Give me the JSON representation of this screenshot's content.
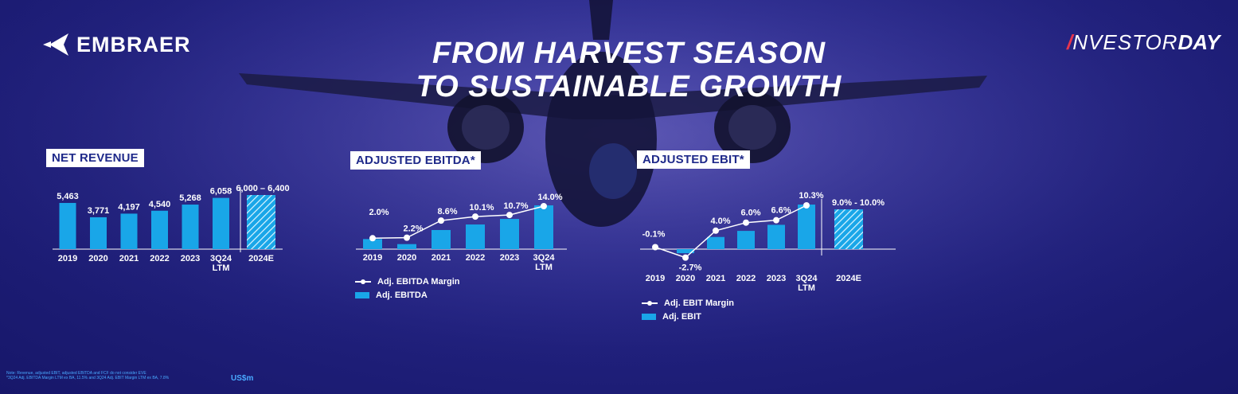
{
  "header": {
    "brand": "EMBRAER",
    "headline_line1": "FROM HARVEST SEASON",
    "headline_line2": "TO SUSTAINABLE GROWTH",
    "event_part1": "NVESTOR",
    "event_part2": "DAY"
  },
  "colors": {
    "bar": "#19a6e8",
    "forecast_bar": "#7fd6f2",
    "box_text": "#1f2a8a",
    "note": "#49a9ff"
  },
  "chart_data": [
    {
      "type": "bar",
      "title": "NET REVENUE",
      "categories": [
        "2019",
        "2020",
        "2021",
        "2022",
        "2023",
        "3Q24 LTM"
      ],
      "values": [
        5463,
        3771,
        4197,
        4540,
        5268,
        6058
      ],
      "value_labels": [
        "5,463",
        "3,771",
        "4,197",
        "4,540",
        "5,268",
        "6,058"
      ],
      "forecast": {
        "label": "2024E",
        "range": [
          6000,
          6400
        ],
        "range_label": "6,000 – 6,400"
      },
      "ylim": [
        0,
        6400
      ]
    },
    {
      "type": "bar",
      "title": "ADJUSTED EBITDA*",
      "categories": [
        "2019",
        "2020",
        "2021",
        "2022",
        "2023",
        "3Q24 LTM"
      ],
      "values": [
        2.0,
        1.0,
        3.8,
        4.9,
        6.0,
        8.7
      ],
      "margin_series": {
        "name": "Adj. EBITDA Margin",
        "values": [
          2.0,
          2.2,
          8.6,
          10.1,
          10.7,
          14.0
        ],
        "labels": [
          "2.0%",
          "2.2%",
          "8.6%",
          "10.1%",
          "10.7%",
          "14.0%"
        ]
      },
      "bar_series_name": "Adj. EBITDA",
      "legend": [
        "Adj. EBITDA Margin",
        "Adj. EBITDA"
      ]
    },
    {
      "type": "bar",
      "title": "ADJUSTED EBIT*",
      "categories": [
        "2019",
        "2020",
        "2021",
        "2022",
        "2023",
        "3Q24 LTM"
      ],
      "values": [
        0.0,
        -1.0,
        3.0,
        4.5,
        6.0,
        11.0
      ],
      "margin_series": {
        "name": "Adj. EBIT Margin",
        "values": [
          -0.1,
          -2.7,
          4.0,
          6.0,
          6.6,
          10.3
        ],
        "labels": [
          "-0.1%",
          "-2.7%",
          "4.0%",
          "6.0%",
          "6.6%",
          "10.3%"
        ]
      },
      "bar_series_name": "Adj. EBIT",
      "forecast": {
        "label": "2024E",
        "range_label": "9.0% - 10.0%"
      },
      "legend": [
        "Adj. EBIT Margin",
        "Adj. EBIT"
      ]
    }
  ],
  "footer": {
    "note1": "Note: Revenue, adjusted EBIT, adjusted EBITDA and FCF do not consider EVE",
    "note2": "*3Q24 Adj. EBITDA Margin LTM ex BA, 11.5% and 3Q24 Adj. EBIT Margin LTM ex BA, 7.8%",
    "unit": "US$m"
  }
}
